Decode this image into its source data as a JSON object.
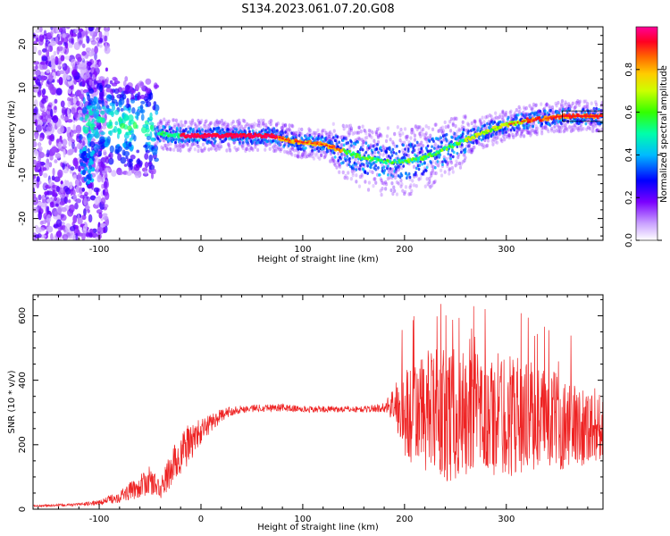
{
  "title": "S134.2023.061.07.20.G08",
  "colors": {
    "snr_line": "#ee2222",
    "colormap": [
      "#ffffff",
      "#8a2be2",
      "#0000ff",
      "#00ccff",
      "#00ff66",
      "#ffff00",
      "#ff7700",
      "#ff0033",
      "#ff0099"
    ]
  },
  "chart_data": [
    {
      "type": "heatmap",
      "title": "S134.2023.061.07.20.G08",
      "xlabel": "Height of straight line (km)",
      "ylabel": "Frequency (Hz)",
      "xlim": [
        -165,
        395
      ],
      "ylim": [
        -25,
        24
      ],
      "xticks": [
        -100,
        0,
        100,
        200,
        300
      ],
      "yticks": [
        -20,
        -10,
        0,
        10,
        20
      ],
      "colorbar": {
        "label": "Normalized spectral amplitude",
        "range": [
          0.0,
          1.0
        ],
        "ticks": [
          "0.0",
          "0.2",
          "0.4",
          "0.6",
          "0.8"
        ],
        "tick_values": [
          0.0,
          0.2,
          0.4,
          0.6,
          0.8
        ]
      },
      "ridge": {
        "x": [
          -40,
          -20,
          0,
          20,
          40,
          60,
          70,
          85,
          100,
          120,
          140,
          160,
          180,
          200,
          220,
          240,
          260,
          280,
          300,
          320,
          340,
          355,
          370,
          395
        ],
        "y": [
          -0.5,
          -1,
          -1,
          -1,
          -1,
          -1,
          -1,
          -2,
          -2.5,
          -3,
          -4.5,
          -6,
          -7,
          -7,
          -6,
          -4,
          -2,
          0,
          1.5,
          2.5,
          3,
          3.5,
          3.5,
          3.5
        ]
      }
    },
    {
      "type": "line",
      "xlabel": "Height of straight line (km)",
      "ylabel": "SNR (10 * v/v)",
      "xlim": [
        -165,
        395
      ],
      "ylim": [
        0,
        665
      ],
      "xticks": [
        -100,
        0,
        100,
        200,
        300
      ],
      "yticks": [
        0,
        200,
        400,
        600
      ],
      "envelope": {
        "x": [
          -165,
          -140,
          -120,
          -100,
          -80,
          -60,
          -50,
          -40,
          -30,
          -20,
          -10,
          0,
          10,
          20,
          30,
          40,
          60,
          80,
          100,
          120,
          140,
          160,
          180,
          190,
          200,
          220,
          240,
          260,
          280,
          300,
          320,
          340,
          360,
          380,
          395
        ],
        "y": [
          10,
          12,
          15,
          20,
          40,
          70,
          90,
          60,
          120,
          170,
          210,
          240,
          270,
          290,
          305,
          310,
          315,
          315,
          310,
          310,
          310,
          310,
          315,
          330,
          290,
          300,
          295,
          290,
          285,
          295,
          290,
          285,
          260,
          260,
          260
        ],
        "spread": [
          3,
          4,
          4,
          8,
          20,
          35,
          45,
          30,
          60,
          70,
          60,
          40,
          30,
          20,
          15,
          12,
          12,
          12,
          10,
          10,
          10,
          10,
          15,
          60,
          150,
          190,
          210,
          200,
          190,
          200,
          170,
          160,
          140,
          120,
          110
        ]
      }
    }
  ]
}
